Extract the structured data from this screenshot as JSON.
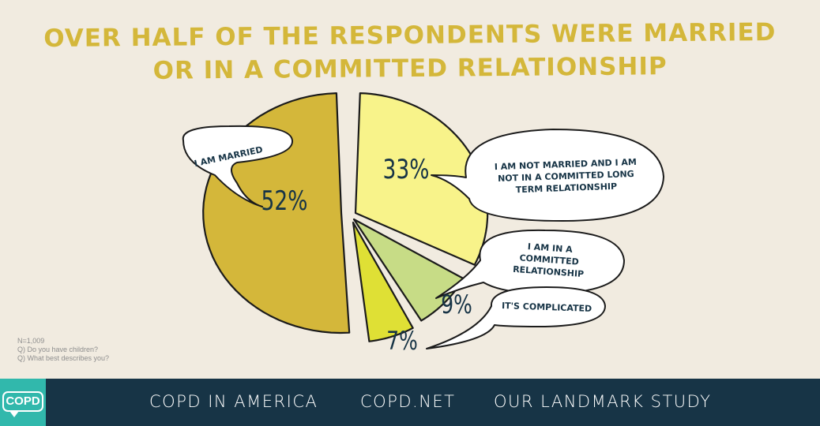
{
  "title": {
    "line1": "OVER HALF OF THE RESPONDENTS WERE MARRIED",
    "line2": "OR IN A COMMITTED RELATIONSHIP"
  },
  "chart_data": {
    "type": "pie",
    "slices": [
      {
        "label": "I AM MARRIED",
        "value": 52,
        "display": "52%",
        "color": "#d4b73a"
      },
      {
        "label": "I AM NOT MARRIED AND I AM NOT IN A COMMITTED LONG TERM RELATIONSHIP",
        "value": 33,
        "display": "33%",
        "color": "#f8f38a"
      },
      {
        "label": "I AM IN A COMMITTED RELATIONSHIP",
        "value": 9,
        "display": "9%",
        "color": "#c7dc86"
      },
      {
        "label": "IT'S COMPLICATED",
        "value": 7,
        "display": "7%",
        "color": "#dfe035"
      }
    ]
  },
  "notes": {
    "n": "N=1,009",
    "q1": "Q) Do you have children?",
    "q2": "Q) What best describes you?"
  },
  "footer": {
    "logo": "COPD",
    "links": [
      "COPD IN AMERICA",
      "COPD.NET",
      "OUR LANDMARK STUDY"
    ]
  },
  "colors": {
    "background": "#f1ebe0",
    "title": "#d4b73a",
    "footer_bg": "#173446",
    "logo_bg": "#31b8ac",
    "label_text": "#173446"
  }
}
